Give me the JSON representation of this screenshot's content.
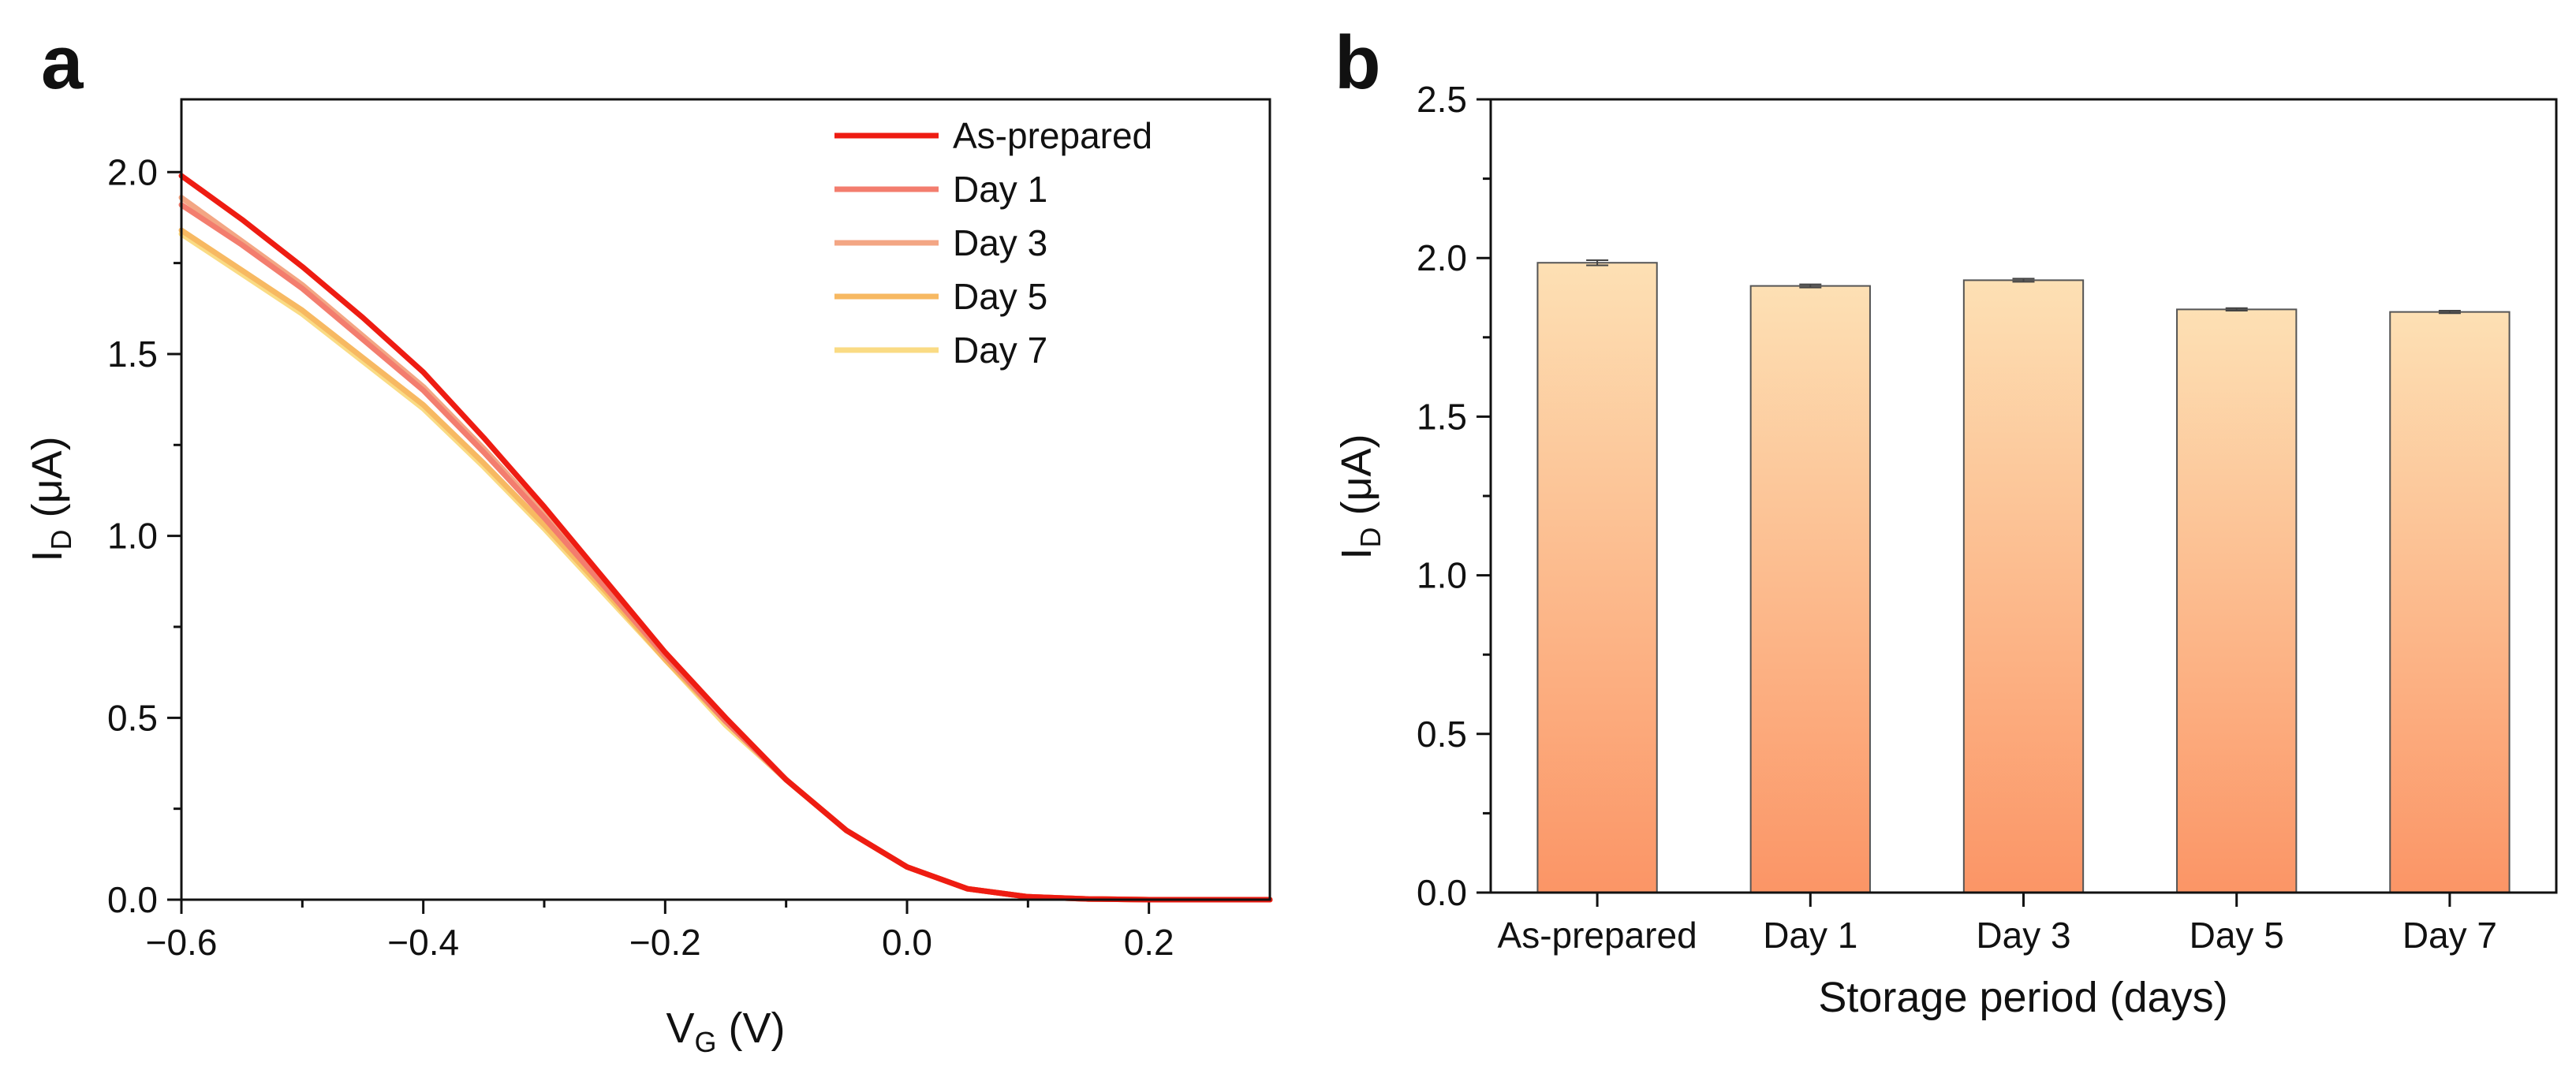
{
  "panel_a_label": "a",
  "panel_b_label": "b",
  "colors": {
    "As-prepared": "#ee1c12",
    "Day 1": "#f37d6e",
    "Day 3": "#f3a684",
    "Day 5": "#f7b962",
    "Day 7": "#fadb84",
    "bar_top": "#fde0b4",
    "bar_bottom": "#fb9566"
  },
  "chart_data": [
    {
      "type": "line",
      "panel": "a",
      "title": "",
      "xlabel": "V",
      "xlabel_sub": "G",
      "xlabel_unit": " (V)",
      "ylabel": "I",
      "ylabel_sub": "D",
      "ylabel_unit": " (μA)",
      "xlim": [
        -0.6,
        0.3
      ],
      "ylim": [
        0,
        2.2
      ],
      "xticks": [
        -0.6,
        -0.4,
        -0.2,
        0.0,
        0.2
      ],
      "xtick_labels": [
        "−0.6",
        "−0.4",
        "−0.2",
        "0.0",
        "0.2"
      ],
      "yticks": [
        0.0,
        0.5,
        1.0,
        1.5,
        2.0
      ],
      "ytick_labels": [
        "0.0",
        "0.5",
        "1.0",
        "1.5",
        "2.0"
      ],
      "legend_position": "top-right",
      "x": [
        -0.6,
        -0.55,
        -0.5,
        -0.45,
        -0.4,
        -0.35,
        -0.3,
        -0.25,
        -0.2,
        -0.15,
        -0.1,
        -0.05,
        0.0,
        0.05,
        0.1,
        0.15,
        0.2,
        0.25,
        0.3
      ],
      "series": [
        {
          "name": "As-prepared",
          "values": [
            1.99,
            1.87,
            1.74,
            1.6,
            1.45,
            1.27,
            1.08,
            0.88,
            0.68,
            0.5,
            0.33,
            0.19,
            0.09,
            0.03,
            0.008,
            0.002,
            0.0,
            0.0,
            0.0
          ]
        },
        {
          "name": "Day 1",
          "values": [
            1.91,
            1.8,
            1.68,
            1.54,
            1.4,
            1.23,
            1.05,
            0.86,
            0.67,
            0.49,
            0.33,
            0.19,
            0.09,
            0.03,
            0.008,
            0.002,
            0.0,
            0.0,
            0.0
          ]
        },
        {
          "name": "Day 3",
          "values": [
            1.93,
            1.81,
            1.69,
            1.55,
            1.41,
            1.24,
            1.06,
            0.87,
            0.67,
            0.49,
            0.33,
            0.19,
            0.09,
            0.03,
            0.008,
            0.002,
            0.0,
            0.0,
            0.0
          ]
        },
        {
          "name": "Day 5",
          "values": [
            1.84,
            1.73,
            1.62,
            1.49,
            1.36,
            1.2,
            1.03,
            0.85,
            0.66,
            0.49,
            0.33,
            0.19,
            0.09,
            0.03,
            0.008,
            0.002,
            0.0,
            0.0,
            0.0
          ]
        },
        {
          "name": "Day 7",
          "values": [
            1.83,
            1.72,
            1.61,
            1.48,
            1.35,
            1.19,
            1.02,
            0.84,
            0.66,
            0.48,
            0.33,
            0.19,
            0.09,
            0.03,
            0.008,
            0.002,
            0.0,
            0.0,
            0.0
          ]
        }
      ]
    },
    {
      "type": "bar",
      "panel": "b",
      "title": "",
      "xlabel": "Storage period (days)",
      "ylabel": "I",
      "ylabel_sub": "D",
      "ylabel_unit": " (μA)",
      "ylim": [
        0,
        2.5
      ],
      "yticks": [
        0.0,
        0.5,
        1.0,
        1.5,
        2.0,
        2.5
      ],
      "ytick_labels": [
        "0.0",
        "0.5",
        "1.0",
        "1.5",
        "2.0",
        "2.5"
      ],
      "categories": [
        "As-prepared",
        "Day 1",
        "Day 3",
        "Day 5",
        "Day 7"
      ],
      "values": [
        1.985,
        1.912,
        1.93,
        1.838,
        1.83
      ],
      "errors": [
        0.008,
        0.005,
        0.005,
        0.004,
        0.004
      ]
    }
  ]
}
